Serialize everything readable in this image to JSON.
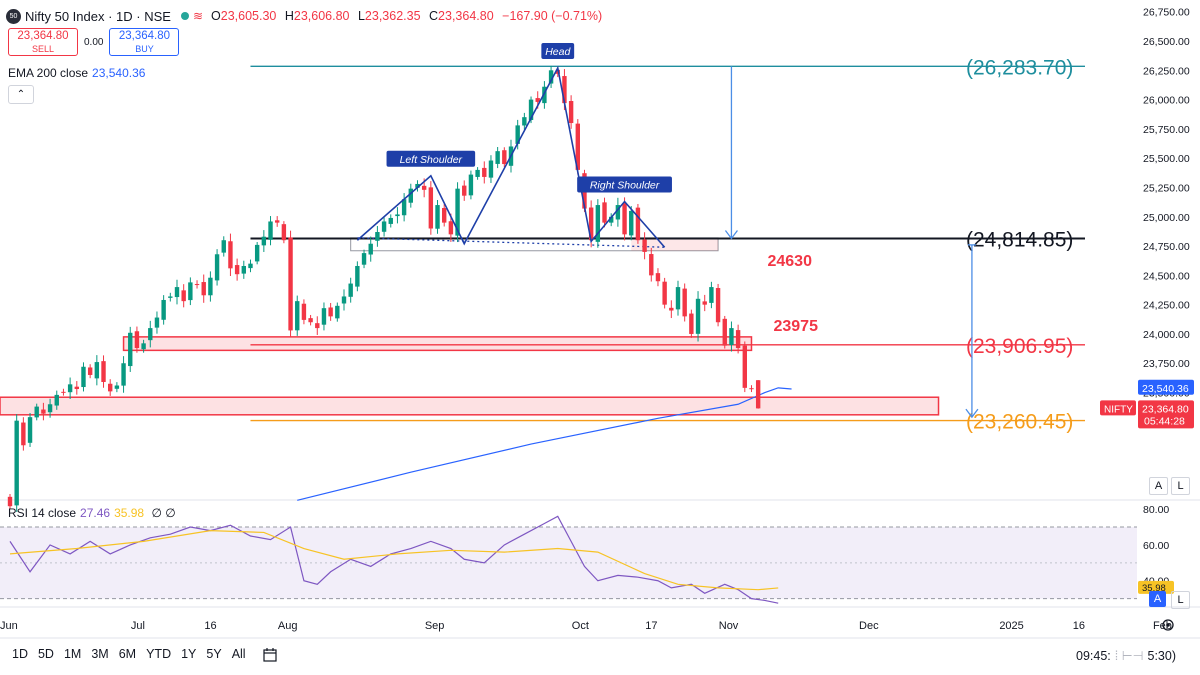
{
  "header": {
    "symbol_badge": "50",
    "title": "Nifty 50 Index · 1D · NSE",
    "ohlc": [
      {
        "label": "O",
        "value": "23,605.30"
      },
      {
        "label": "H",
        "value": "23,606.80"
      },
      {
        "label": "L",
        "value": "23,362.35"
      },
      {
        "label": "C",
        "value": "23,364.80"
      }
    ],
    "change": "−167.90 (−0.71%)"
  },
  "trade": {
    "sell_price": "23,364.80",
    "sell_label": "SELL",
    "spread": "0.00",
    "buy_price": "23,364.80",
    "buy_label": "BUY"
  },
  "ema_legend": {
    "label": "EMA 200 close",
    "value": "23,540.36"
  },
  "rsi_legend": {
    "label": "RSI 14 close",
    "value1": "27.46",
    "value2": "35.98",
    "extra": "∅ ∅"
  },
  "timeframes": [
    "1D",
    "5D",
    "1M",
    "3M",
    "6M",
    "YTD",
    "1Y",
    "5Y",
    "All"
  ],
  "clock": "09:45:",
  "clock_tail": "5:30)",
  "icons": {
    "compare": "compare-icon",
    "settings": "gear-icon",
    "collapse": "chevron-up-icon"
  },
  "colors": {
    "up": "#089981",
    "down": "#f23645",
    "pattern": "#1e3fa8",
    "ema": "#2962ff",
    "rsi": "#7e57c2",
    "rsi_ma": "#f7c325",
    "teal": "#1e8e9e",
    "orange": "#f59c1a"
  },
  "chart_data": {
    "type": "candlestick",
    "symbol": "NIFTY",
    "interval": "1D",
    "price_axis": {
      "min": 22600,
      "max": 26850,
      "ticks": [
        26750,
        26500,
        26250,
        26000,
        25750,
        25500,
        25250,
        25000,
        24750,
        24500,
        24250,
        24000,
        23750,
        23500
      ],
      "tick_labels": [
        "26,750.00",
        "26,500.00",
        "26,250.00",
        "26,000.00",
        "25,750.00",
        "25,500.00",
        "25,250.00",
        "25,000.00",
        "24,750.00",
        "24,500.00",
        "24,250.00",
        "24,000.00",
        "23,750.00",
        "23,500.00"
      ]
    },
    "x_axis_labels": [
      {
        "label": "Jun",
        "bar": -1
      },
      {
        "label": "Jul",
        "bar": 19
      },
      {
        "label": "16",
        "bar": 30
      },
      {
        "label": "Aug",
        "bar": 41
      },
      {
        "label": "Sep",
        "bar": 63
      },
      {
        "label": "Oct",
        "bar": 85
      },
      {
        "label": "17",
        "bar": 96
      },
      {
        "label": "Nov",
        "bar": 107
      },
      {
        "label": "Dec",
        "bar": 128
      },
      {
        "label": "2025",
        "bar": 149
      },
      {
        "label": "16",
        "bar": 160
      },
      {
        "label": "Feb",
        "bar": 172
      }
    ],
    "closes": [
      22530,
      23260,
      23050,
      23290,
      23380,
      23320,
      23400,
      23480,
      23500,
      23570,
      23530,
      23720,
      23650,
      23760,
      23590,
      23510,
      23560,
      23750,
      24010,
      23880,
      23920,
      24050,
      24140,
      24290,
      24320,
      24400,
      24280,
      24440,
      24420,
      24330,
      24480,
      24680,
      24800,
      24560,
      24510,
      24580,
      24600,
      24760,
      24830,
      24960,
      24950,
      24800,
      24030,
      24280,
      24120,
      24100,
      24050,
      24220,
      24150,
      24240,
      24320,
      24430,
      24580,
      24690,
      24770,
      24870,
      24960,
      24990,
      25020,
      25150,
      25240,
      25280,
      25230,
      24900,
      25100,
      24950,
      24850,
      25240,
      25180,
      25360,
      25400,
      25340,
      25480,
      25560,
      25450,
      25600,
      25780,
      25850,
      26000,
      25980,
      26110,
      26250,
      26220,
      25970,
      25800,
      25400,
      25070,
      24800,
      25100,
      24950,
      25000,
      25100,
      24850,
      25050,
      24800,
      24700,
      24500,
      24450,
      24250,
      24200,
      24400,
      24150,
      24000,
      24300,
      24250,
      24400,
      24100,
      23900,
      24050,
      23880,
      23540,
      23530,
      23364.8
    ],
    "last_open": 23605.3,
    "last_high": 23606.8,
    "last_low": 23362.35,
    "ema200": {
      "label": "EMA 200 close",
      "last": 23540.36,
      "points": [
        [
          43,
          22580
        ],
        [
          60,
          22820
        ],
        [
          78,
          23060
        ],
        [
          97,
          23280
        ],
        [
          109,
          23400
        ],
        [
          113,
          23500
        ],
        [
          115,
          23540
        ],
        [
          117,
          23530
        ]
      ]
    },
    "pattern": {
      "name": "Head and Shoulders",
      "labels": {
        "left_shoulder": "Left Shoulder",
        "head": "Head",
        "right_shoulder": "Right Shoulder"
      },
      "points": [
        [
          52,
          24800
        ],
        [
          63,
          25350
        ],
        [
          68,
          24770
        ],
        [
          82,
          26270
        ],
        [
          87,
          24790
        ],
        [
          92,
          25130
        ],
        [
          98,
          24740
        ]
      ],
      "neckline": [
        [
          52,
          24820
        ],
        [
          98,
          24740
        ]
      ]
    },
    "levels": [
      {
        "label": "(26,283.70)",
        "value": 26283.7,
        "color": "teal"
      },
      {
        "label": "(24,814.85)",
        "value": 24814.85,
        "color": "black"
      },
      {
        "label": "(23,906.95)",
        "value": 23906.95,
        "color": "red"
      },
      {
        "label": "(23,260.45)",
        "value": 23260.45,
        "color": "orange"
      }
    ],
    "zones": [
      {
        "label": "23975",
        "top": 23975,
        "bottom": 23860
      },
      {
        "label": "",
        "top": 23460,
        "bottom": 23310
      }
    ],
    "zone_notes": [
      "24630"
    ],
    "target_arrows": [
      {
        "bar": 108,
        "from": 26283.7,
        "to": 24814.85
      },
      {
        "bar": 144,
        "from": 24760,
        "to": 23290
      }
    ],
    "price_tags": [
      {
        "label": "",
        "value": "23,540.36"
      },
      {
        "label": "NIFTY",
        "value": "23,364.80",
        "countdown": "05:44:28"
      }
    ],
    "rsi": {
      "label": "RSI 14 close",
      "axis": {
        "min": 27,
        "max": 84,
        "ticks": [
          80,
          60,
          40
        ],
        "tick_labels": [
          "80.00",
          "60.00",
          "40.00"
        ],
        "bands": [
          70,
          30
        ]
      },
      "last": 27.46,
      "ma_last": 35.98,
      "ma_tag": "35.98",
      "values": [
        [
          0,
          62
        ],
        [
          3,
          45
        ],
        [
          6,
          60
        ],
        [
          9,
          55
        ],
        [
          12,
          62
        ],
        [
          15,
          55
        ],
        [
          18,
          60
        ],
        [
          21,
          64
        ],
        [
          24,
          66
        ],
        [
          27,
          70
        ],
        [
          30,
          68
        ],
        [
          33,
          71
        ],
        [
          36,
          65
        ],
        [
          39,
          63
        ],
        [
          42,
          70
        ],
        [
          44,
          40
        ],
        [
          46,
          38
        ],
        [
          48,
          45
        ],
        [
          51,
          52
        ],
        [
          54,
          48
        ],
        [
          57,
          55
        ],
        [
          60,
          58
        ],
        [
          63,
          62
        ],
        [
          66,
          58
        ],
        [
          68,
          52
        ],
        [
          71,
          50
        ],
        [
          74,
          60
        ],
        [
          77,
          66
        ],
        [
          80,
          72
        ],
        [
          82,
          76
        ],
        [
          84,
          62
        ],
        [
          86,
          48
        ],
        [
          88,
          40
        ],
        [
          91,
          43
        ],
        [
          94,
          42
        ],
        [
          97,
          40
        ],
        [
          99,
          36
        ],
        [
          102,
          38
        ],
        [
          104,
          33
        ],
        [
          107,
          38
        ],
        [
          109,
          35
        ],
        [
          111,
          30
        ],
        [
          113,
          29
        ],
        [
          115,
          27.46
        ]
      ],
      "ma_values": [
        [
          0,
          55
        ],
        [
          10,
          58
        ],
        [
          20,
          62
        ],
        [
          30,
          68
        ],
        [
          38,
          67
        ],
        [
          44,
          58
        ],
        [
          50,
          52
        ],
        [
          58,
          55
        ],
        [
          66,
          57
        ],
        [
          74,
          56
        ],
        [
          82,
          58
        ],
        [
          88,
          56
        ],
        [
          95,
          44
        ],
        [
          100,
          38
        ],
        [
          106,
          36
        ],
        [
          112,
          35
        ],
        [
          115,
          35.98
        ]
      ]
    }
  }
}
